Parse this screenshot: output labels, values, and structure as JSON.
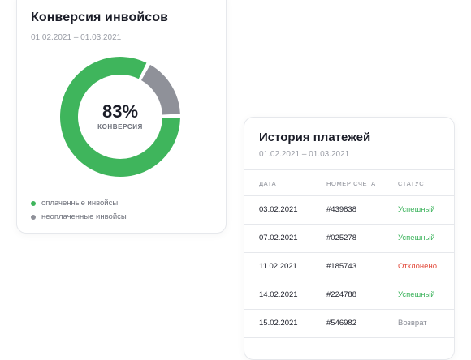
{
  "conversion": {
    "title": "Конверсия инвойсов",
    "date_range": "01.02.2021 – 01.03.2021",
    "percent_label": "83%",
    "percent_caption": "КОНВЕРСИЯ",
    "paid_share": 0.83,
    "colors": {
      "paid": "#3fb55c",
      "unpaid": "#8f9199"
    },
    "legend": [
      {
        "label": "оплаченные инвойсы",
        "color": "#3fb55c"
      },
      {
        "label": "неоплаченные инвойсы",
        "color": "#8f9199"
      }
    ]
  },
  "history": {
    "title": "История платежей",
    "date_range": "01.02.2021 – 01.03.2021",
    "columns": [
      "ДАТА",
      "НОМЕР СЧЕТА",
      "СТАТУС"
    ],
    "rows": [
      {
        "date": "03.02.2021",
        "invoice": "#439838",
        "status": "Успешный",
        "status_type": "success"
      },
      {
        "date": "07.02.2021",
        "invoice": "#025278",
        "status": "Успешный",
        "status_type": "success"
      },
      {
        "date": "11.02.2021",
        "invoice": "#185743",
        "status": "Отклонено",
        "status_type": "declined"
      },
      {
        "date": "14.02.2021",
        "invoice": "#224788",
        "status": "Успешный",
        "status_type": "success"
      },
      {
        "date": "15.02.2021",
        "invoice": "#546982",
        "status": "Возврат",
        "status_type": "refund"
      }
    ]
  }
}
